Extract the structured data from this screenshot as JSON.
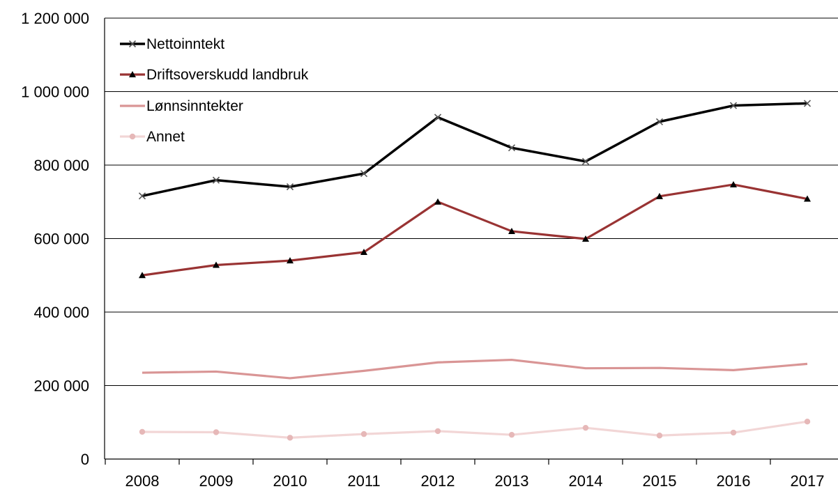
{
  "chart_data": {
    "type": "line",
    "title": "",
    "xlabel": "",
    "ylabel": "",
    "categories": [
      "2008",
      "2009",
      "2010",
      "2011",
      "2012",
      "2013",
      "2014",
      "2015",
      "2016",
      "2017"
    ],
    "y_ticks": [
      "0",
      "200 000",
      "400 000",
      "600 000",
      "800 000",
      "1 000 000",
      "1 200 000"
    ],
    "y_tick_values": [
      0,
      200000,
      400000,
      600000,
      800000,
      1000000,
      1200000
    ],
    "ylim": [
      0,
      1200000
    ],
    "grid": "horizontal",
    "legend_position": "top-left",
    "series": [
      {
        "name": "Nettoinntekt",
        "color": "#000000",
        "marker": "x",
        "values": [
          716000,
          759000,
          741000,
          777000,
          930000,
          847000,
          810000,
          918000,
          962000,
          968000
        ]
      },
      {
        "name": "Driftsoverskudd landbruk",
        "color": "#993333",
        "marker": "triangle",
        "values": [
          500000,
          528000,
          540000,
          563000,
          700000,
          620000,
          599000,
          715000,
          747000,
          708000
        ]
      },
      {
        "name": "Lønnsinntekter",
        "color": "#D99595",
        "marker": "none",
        "values": [
          235000,
          238000,
          220000,
          240000,
          263000,
          270000,
          247000,
          248000,
          242000,
          259000
        ]
      },
      {
        "name": "Annet",
        "color": "#F2D6D6",
        "marker": "circle",
        "values": [
          74000,
          73000,
          58000,
          68000,
          76000,
          66000,
          85000,
          64000,
          72000,
          102000
        ]
      }
    ]
  }
}
